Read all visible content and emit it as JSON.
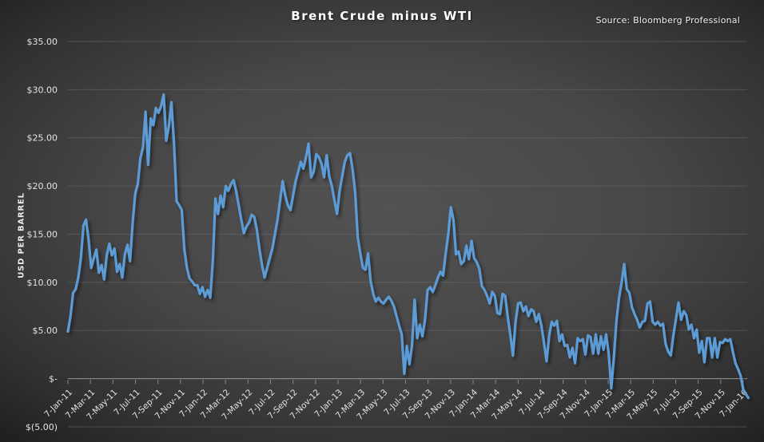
{
  "header": {
    "title": "Brent Crude minus WTI",
    "source": "Source: Bloomberg Professional"
  },
  "chart_data": {
    "type": "line",
    "title": "Brent Crude minus WTI",
    "ylabel": "USD PER BARREL",
    "ylim": [
      -5,
      35
    ],
    "ytick_step": 5,
    "grid": true,
    "legend": "none",
    "line_color": "#5b9bd5",
    "yticks": [
      {
        "value": 35,
        "label": "$35.00"
      },
      {
        "value": 30,
        "label": "$30.00"
      },
      {
        "value": 25,
        "label": "$25.00"
      },
      {
        "value": 20,
        "label": "$20.00"
      },
      {
        "value": 15,
        "label": "$15.00"
      },
      {
        "value": 10,
        "label": "$10.00"
      },
      {
        "value": 5,
        "label": "$5.00"
      },
      {
        "value": 0,
        "label": "$-"
      },
      {
        "value": -5,
        "label": "$(5.00)"
      }
    ],
    "xtick_labels": [
      "7-Jan-11",
      "7-Mar-11",
      "7-May-11",
      "7-Jul-11",
      "7-Sep-11",
      "7-Nov-11",
      "7-Jan-12",
      "7-Mar-12",
      "7-May-12",
      "7-Jul-12",
      "7-Sep-12",
      "7-Nov-12",
      "7-Jan-13",
      "7-Mar-13",
      "7-May-13",
      "7-Jul-13",
      "7-Sep-13",
      "7-Nov-13",
      "7-Jan-14",
      "7-Mar-14",
      "7-May-14",
      "7-Jul-14",
      "7-Sep-14",
      "7-Nov-14",
      "7-Jan-15",
      "7-Mar-15",
      "7-May-15",
      "7-Jul-15",
      "7-Sep-15",
      "7-Nov-15",
      "7-Jan-16"
    ],
    "x_frequency": "weekly",
    "series": [
      {
        "name": "Brent Crude minus WTI",
        "values": [
          4.9,
          6.5,
          8.9,
          9.3,
          10.5,
          12.5,
          15.9,
          16.5,
          14.4,
          11.5,
          12.5,
          13.4,
          11.0,
          11.8,
          10.3,
          12.8,
          14.0,
          12.8,
          13.5,
          11.1,
          11.9,
          10.5,
          12.9,
          13.9,
          12.2,
          16.1,
          19.2,
          20.2,
          22.9,
          24.0,
          27.7,
          22.2,
          27.0,
          26.3,
          28.1,
          27.6,
          28.3,
          29.5,
          24.7,
          26.2,
          28.7,
          24.4,
          18.4,
          18.0,
          17.5,
          13.4,
          11.5,
          10.4,
          10.1,
          9.7,
          9.7,
          8.8,
          9.5,
          8.5,
          9.2,
          8.4,
          12.2,
          18.7,
          17.1,
          19.0,
          17.8,
          20.0,
          19.5,
          20.2,
          20.6,
          19.5,
          18.0,
          16.5,
          15.1,
          15.8,
          16.2,
          17.0,
          16.8,
          15.5,
          13.5,
          11.8,
          10.5,
          11.5,
          12.5,
          13.5,
          15.0,
          16.5,
          18.5,
          20.5,
          19.0,
          18.0,
          17.5,
          19.0,
          20.5,
          21.5,
          22.5,
          21.8,
          23.0,
          24.4,
          20.9,
          21.5,
          23.3,
          23.0,
          22.3,
          20.9,
          23.2,
          21.0,
          20.0,
          18.5,
          17.1,
          19.5,
          21.0,
          22.5,
          23.2,
          23.4,
          21.8,
          19.4,
          14.7,
          13.0,
          11.5,
          11.3,
          13.0,
          10.1,
          8.8,
          8.0,
          8.4,
          8.0,
          7.8,
          8.2,
          8.5,
          8.1,
          7.5,
          6.5,
          5.5,
          4.6,
          0.5,
          3.4,
          1.5,
          3.5,
          8.2,
          4.2,
          5.6,
          4.4,
          6.1,
          9.2,
          9.5,
          9.0,
          9.7,
          10.5,
          11.1,
          10.7,
          13.0,
          15.0,
          17.8,
          16.5,
          12.9,
          13.2,
          11.9,
          12.2,
          13.8,
          12.4,
          14.3,
          12.5,
          12.1,
          11.4,
          9.6,
          9.2,
          8.6,
          7.8,
          9.0,
          8.6,
          6.8,
          6.7,
          8.8,
          8.6,
          6.4,
          4.5,
          2.4,
          5.9,
          7.8,
          7.9,
          7.0,
          7.5,
          6.5,
          7.2,
          7.0,
          5.9,
          6.7,
          5.5,
          3.7,
          1.8,
          4.5,
          5.9,
          5.5,
          6.0,
          3.9,
          4.6,
          3.4,
          3.5,
          2.2,
          3.2,
          1.6,
          4.2,
          3.9,
          4.1,
          2.5,
          4.5,
          4.3,
          2.6,
          4.6,
          2.6,
          4.4,
          3.0,
          4.6,
          2.6,
          -1.0,
          2.2,
          6.0,
          8.4,
          10.0,
          11.9,
          9.3,
          8.9,
          7.4,
          6.7,
          6.1,
          5.3,
          5.9,
          6.0,
          7.8,
          8.0,
          5.9,
          5.6,
          5.9,
          5.5,
          5.7,
          3.6,
          2.8,
          2.4,
          4.5,
          6.2,
          7.9,
          6.1,
          7.0,
          6.6,
          5.1,
          5.6,
          4.2,
          5.1,
          2.7,
          3.9,
          1.7,
          4.2,
          4.2,
          2.2,
          4.2,
          2.2,
          3.8,
          3.7,
          4.1,
          3.9,
          4.1,
          2.8,
          1.6,
          1.0,
          0.3,
          -1.1,
          -1.6,
          -2.0
        ]
      }
    ]
  }
}
